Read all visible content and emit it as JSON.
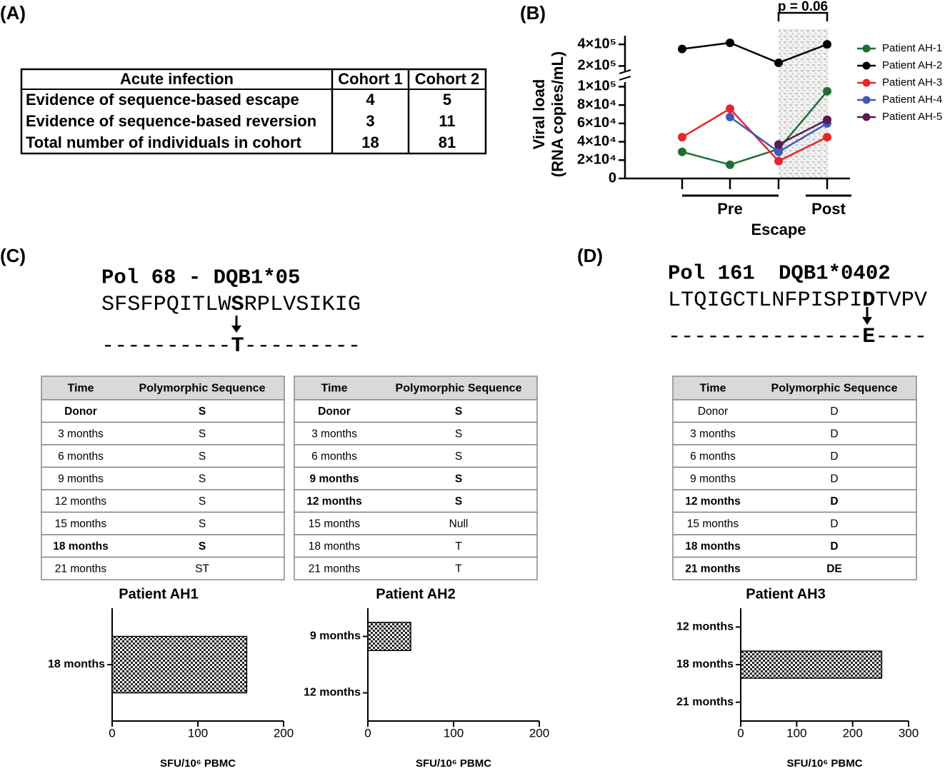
{
  "panel_labels": [
    "(A)",
    "(B)",
    "(C)",
    "(D)"
  ],
  "table_a": {
    "columns": [
      "Acute infection",
      "Cohort 1",
      "Cohort 2"
    ],
    "rows": [
      [
        "Evidence of sequence-based escape",
        4,
        5
      ],
      [
        "Evidence of sequence-based reversion",
        3,
        11
      ],
      [
        "Total number of individuals in cohort",
        18,
        81
      ]
    ]
  },
  "panel_c": {
    "epitope": [
      "Pol 68 - DQB1*05"
    ],
    "sequence": [
      "SFSFPQITLW",
      "S",
      "RPLVSIKIG"
    ],
    "variant": [
      "----------",
      "T",
      "---------"
    ],
    "tables": [
      {
        "columns": [
          "Time",
          "Polymorphic Sequence"
        ],
        "rows": [
          {
            "cells": [
              "Donor",
              "S"
            ],
            "bold": true
          },
          {
            "cells": [
              "3 months",
              "S"
            ],
            "bold": false
          },
          {
            "cells": [
              "6 months",
              "S"
            ],
            "bold": false
          },
          {
            "cells": [
              "9 months",
              "S"
            ],
            "bold": false
          },
          {
            "cells": [
              "12 months",
              "S"
            ],
            "bold": false
          },
          {
            "cells": [
              "15 months",
              "S"
            ],
            "bold": false
          },
          {
            "cells": [
              "18 months",
              "S"
            ],
            "bold": true
          },
          {
            "cells": [
              "21 months",
              "ST"
            ],
            "bold": false
          }
        ]
      },
      {
        "columns": [
          "Time",
          "Polymorphic Sequence"
        ],
        "rows": [
          {
            "cells": [
              "Donor",
              "S"
            ],
            "bold": true
          },
          {
            "cells": [
              "3 months",
              "S"
            ],
            "bold": false
          },
          {
            "cells": [
              "6 months",
              "S"
            ],
            "bold": false
          },
          {
            "cells": [
              "9 months",
              "S"
            ],
            "bold": true
          },
          {
            "cells": [
              "12 months",
              "S"
            ],
            "bold": true
          },
          {
            "cells": [
              "15 months",
              "Null"
            ],
            "bold": false
          },
          {
            "cells": [
              "18 months",
              "T"
            ],
            "bold": false
          },
          {
            "cells": [
              "21 months",
              "T"
            ],
            "bold": false
          }
        ]
      }
    ]
  },
  "panel_d": {
    "epitope": [
      "Pol 161",
      "DQB1*0402"
    ],
    "sequence": [
      "LTQIGCTLNFPISPI",
      "D",
      "TVPV"
    ],
    "variant": [
      "---------------",
      "E",
      "----"
    ],
    "tables": [
      {
        "columns": [
          "Time",
          "Polymorphic Sequence"
        ],
        "rows": [
          {
            "cells": [
              "Donor",
              "D"
            ],
            "bold": false
          },
          {
            "cells": [
              "3 months",
              "D"
            ],
            "bold": false
          },
          {
            "cells": [
              "6 months",
              "D"
            ],
            "bold": false
          },
          {
            "cells": [
              "9 months",
              "D"
            ],
            "bold": false
          },
          {
            "cells": [
              "12 months",
              "D"
            ],
            "bold": true
          },
          {
            "cells": [
              "15 months",
              "D"
            ],
            "bold": false
          },
          {
            "cells": [
              "18 months",
              "D"
            ],
            "bold": true
          },
          {
            "cells": [
              "21 months",
              "DE"
            ],
            "bold": true
          }
        ]
      }
    ]
  },
  "chart_data": [
    {
      "type": "line",
      "ylabel": [
        "Viral load",
        "(RNA copies/mL)"
      ],
      "xlabel": "Escape",
      "x_groups": [
        "Pre",
        "Post"
      ],
      "annotation": "p = 0.06",
      "categories": [
        null,
        null,
        null,
        null
      ],
      "ylim": [
        0,
        105000
      ],
      "yticks": [
        0,
        {
          "value": 20000,
          "label": "2×10⁴"
        },
        {
          "value": 40000,
          "label": "4×10⁴"
        },
        {
          "value": 60000,
          "label": "6×10⁴"
        },
        {
          "value": 80000,
          "label": "8×10⁴"
        },
        {
          "value": 100000,
          "label": "1×10⁵"
        }
      ],
      "upper_ylim": [
        150000,
        480000
      ],
      "upper_yticks": [
        {
          "value": 200000,
          "label": "2×10⁵"
        },
        {
          "value": 400000,
          "label": "4×10⁵"
        }
      ],
      "series": [
        {
          "name": "Patient AH-1",
          "color": "#1f6e31",
          "values": [
            29000,
            15000,
            32000,
            95000
          ]
        },
        {
          "name": "Patient AH-2",
          "color": "#000000",
          "values": [
            357000,
            414000,
            229000,
            400000
          ]
        },
        {
          "name": "Patient AH-3",
          "color": "#e8262a",
          "values": [
            45000,
            76000,
            19000,
            45000
          ]
        },
        {
          "name": "Patient AH-4",
          "color": "#3d5cb8",
          "values": [
            null,
            67000,
            29000,
            60000
          ]
        },
        {
          "name": "Patient AH-5",
          "color": "#5b1a50",
          "values": [
            null,
            null,
            37000,
            64000
          ]
        }
      ]
    },
    {
      "type": "bar",
      "orientation": "horizontal",
      "title": "Patient AH1",
      "xlabel": "SFU/10⁶ PBMC",
      "categories": [
        "18 months"
      ],
      "values": [
        157
      ],
      "xlim": [
        0,
        200
      ],
      "xticks": [
        0,
        100,
        200
      ]
    },
    {
      "type": "bar",
      "orientation": "horizontal",
      "title": "Patient AH2",
      "xlabel": "SFU/10⁶ PBMC",
      "categories": [
        "9 months",
        "12 months"
      ],
      "values": [
        50,
        0
      ],
      "xlim": [
        0,
        200
      ],
      "xticks": [
        0,
        100,
        200
      ]
    },
    {
      "type": "bar",
      "orientation": "horizontal",
      "title": "Patient AH3",
      "xlabel": "SFU/10⁶ PBMC",
      "categories": [
        "12 months",
        "18 months",
        "21 months"
      ],
      "values": [
        0,
        252,
        0
      ],
      "xlim": [
        0,
        300
      ],
      "xticks": [
        0,
        100,
        200,
        300
      ]
    }
  ]
}
